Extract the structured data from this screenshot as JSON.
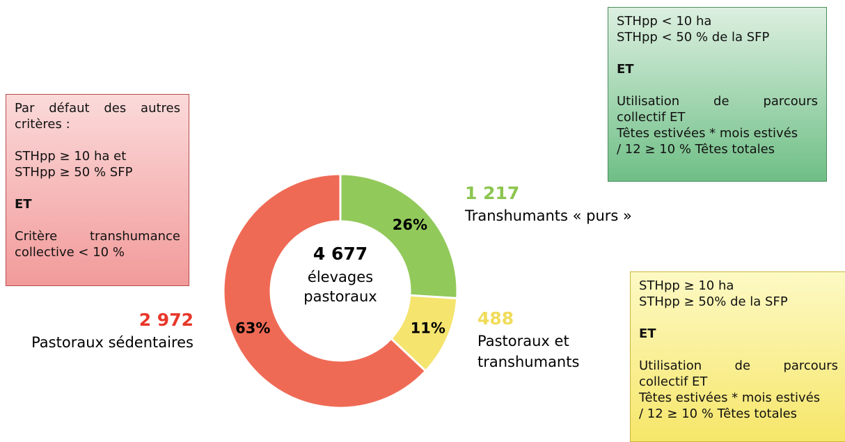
{
  "chart_data": {
    "type": "pie",
    "categories": [
      "Transhumants « purs »",
      "Pastoraux et transhumants",
      "Pastoraux sédentaires"
    ],
    "values": [
      26,
      11,
      63
    ],
    "value_labels": [
      "26%",
      "11%",
      "63%"
    ],
    "colors": [
      "#92c95b",
      "#f5e46e",
      "#ef6a55"
    ],
    "counts": [
      {
        "value": 1217,
        "label": "1 217"
      },
      {
        "value": 488,
        "label": "488"
      },
      {
        "value": 2972,
        "label": "2 972"
      }
    ],
    "count_colors": [
      "#8cc54f",
      "#f0dc5a",
      "#e8372a"
    ],
    "total": {
      "value": 4677,
      "label": "4 677"
    },
    "total_caption": [
      "élevages",
      "pastoraux"
    ],
    "annotations": [
      {
        "paragraphs": [
          [
            "STHpp < 10 ha",
            "STHpp < 50 % de la SFP"
          ],
          [
            "ET"
          ],
          [
            "Utilisation de parcours",
            "collectif ET",
            "Têtes estivées * mois estivés",
            "/ 12 ≥ 10 % Têtes totales"
          ]
        ]
      },
      {
        "paragraphs": [
          [
            "STHpp ≥ 10 ha",
            "STHpp ≥ 50% de la SFP"
          ],
          [
            "ET"
          ],
          [
            "Utilisation de parcours",
            "collectif ET",
            "Têtes estivées * mois estivés",
            "/ 12 ≥ 10 % Têtes totales"
          ]
        ]
      },
      {
        "paragraphs": [
          [
            "Par défaut des autres",
            "critères :"
          ],
          [
            "STHpp ≥ 10 ha et",
            "STHpp ≥ 50 % SFP"
          ],
          [
            "ET"
          ],
          [
            "Critère transhumance",
            "collective < 10 %"
          ]
        ]
      }
    ]
  }
}
